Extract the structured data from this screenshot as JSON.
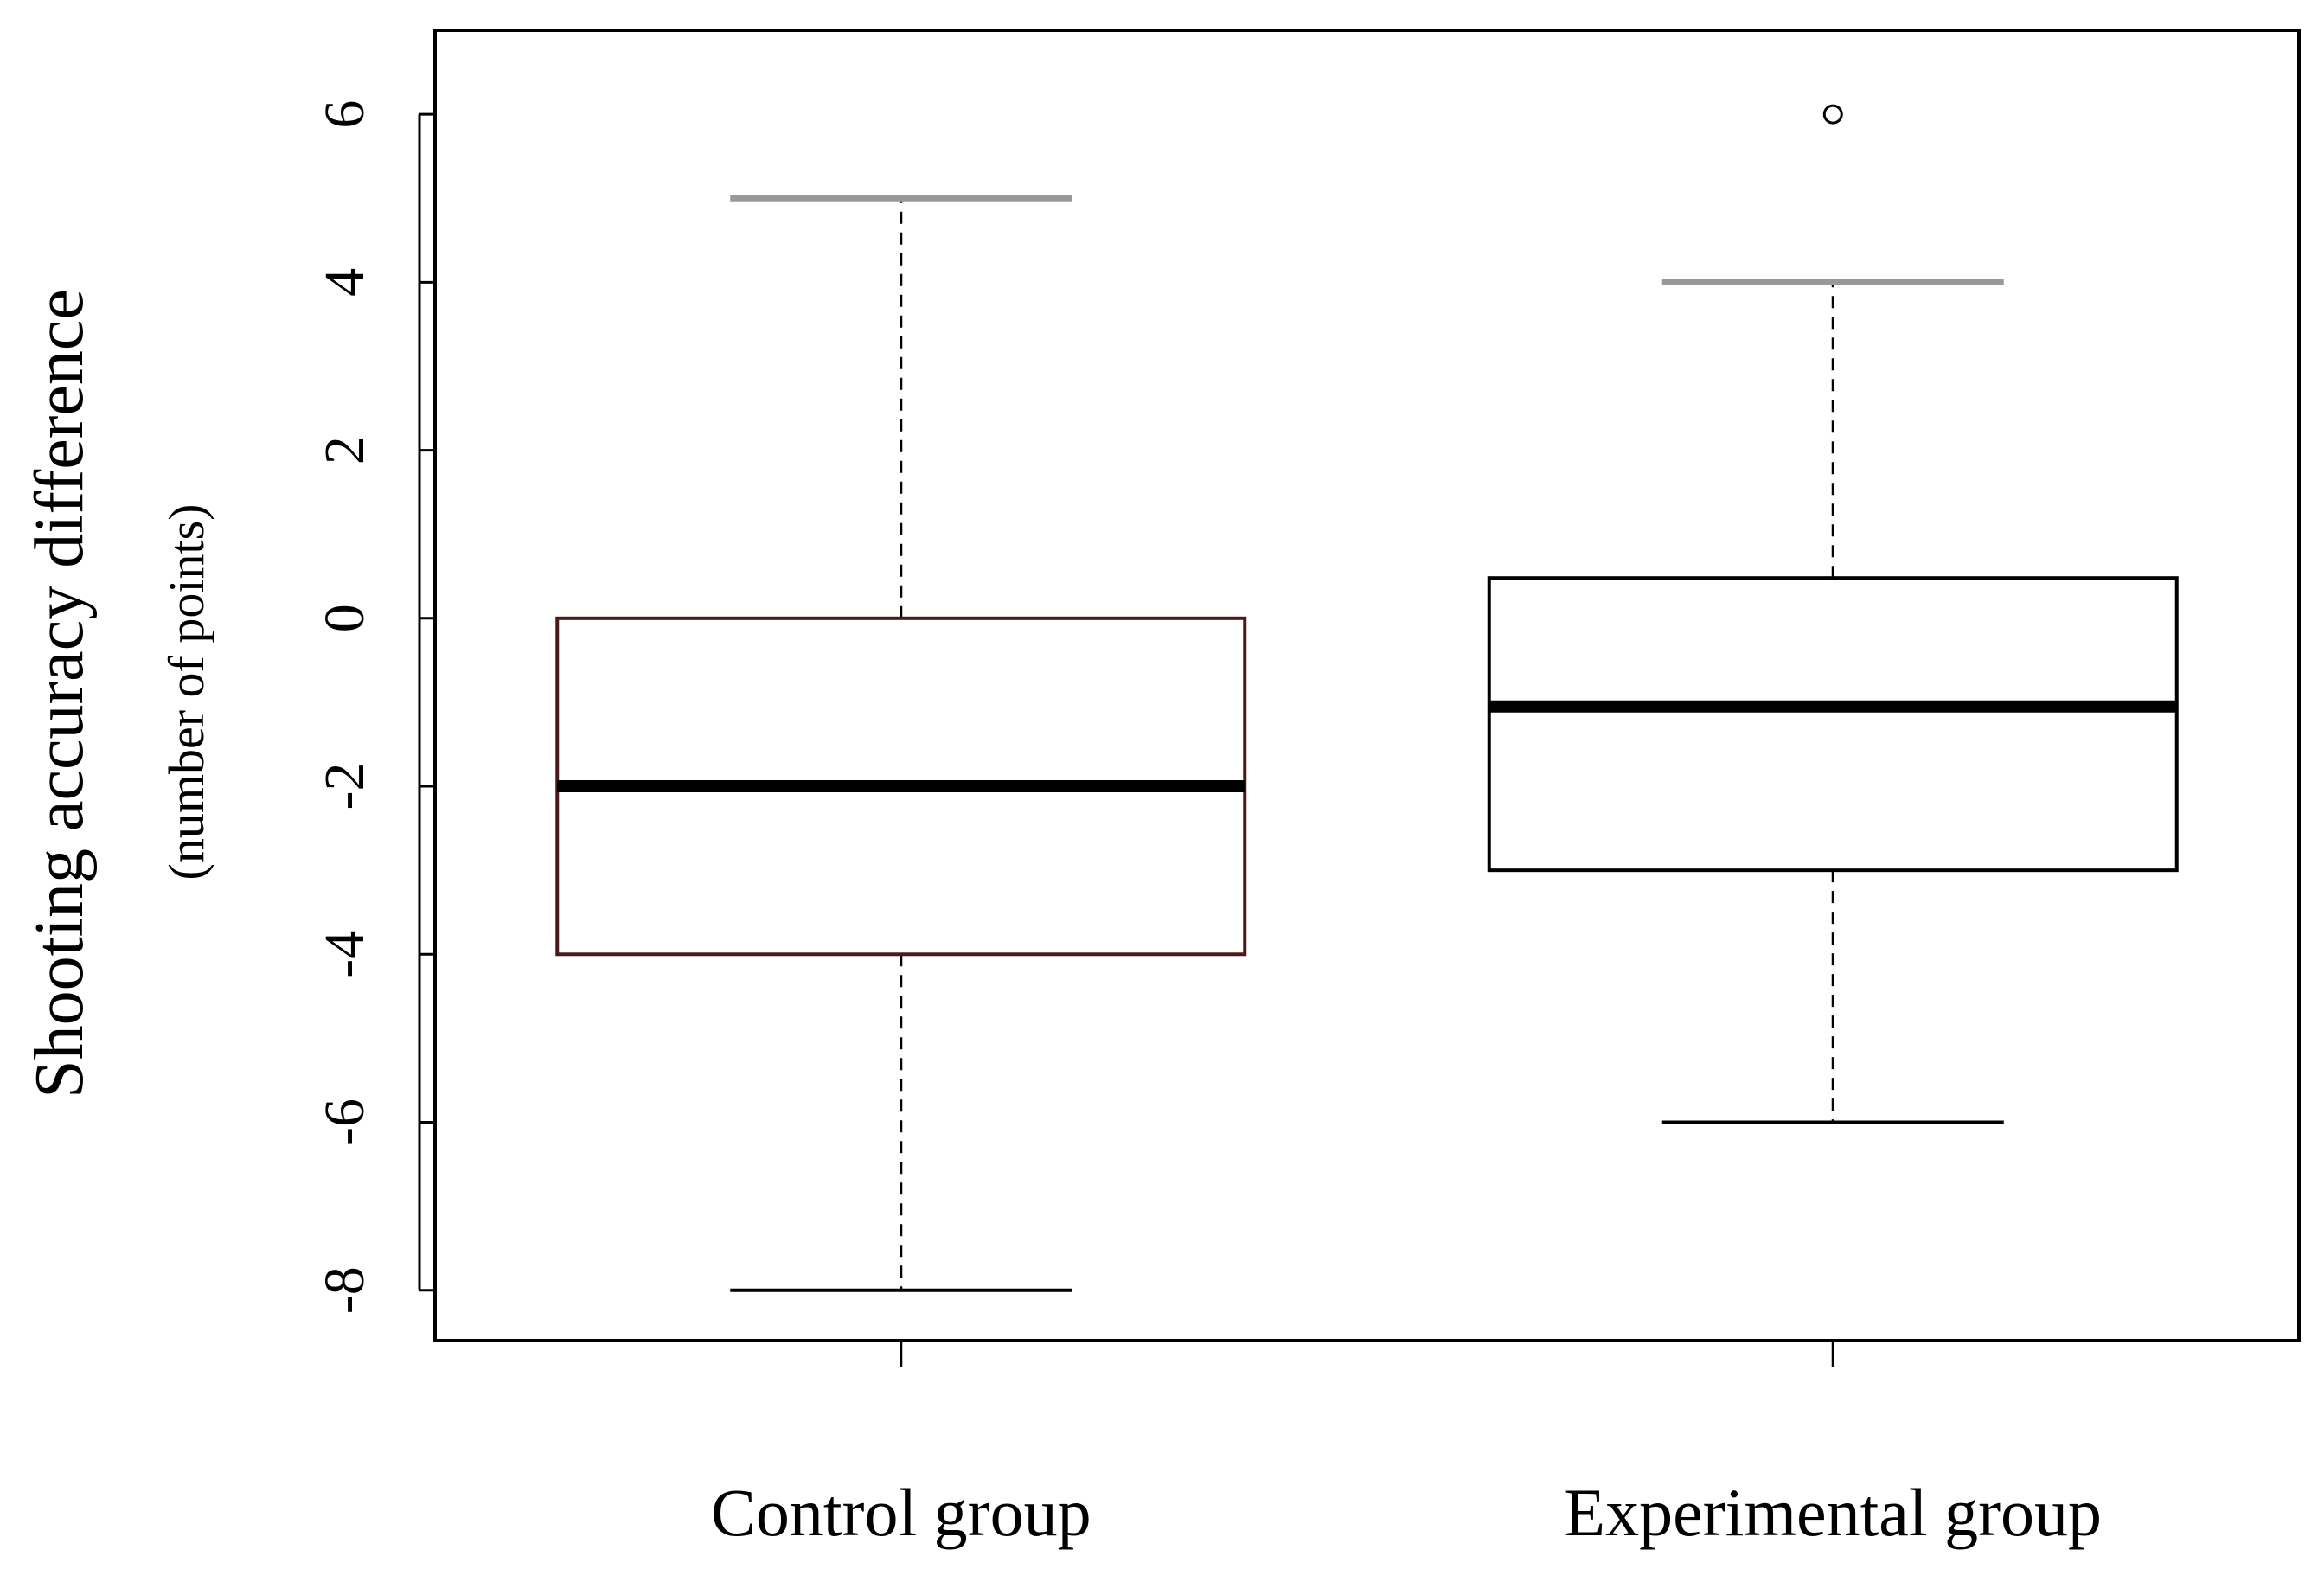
{
  "chart_data": {
    "type": "boxplot",
    "ylabel": "Shooting accuracy difference",
    "ylabel_sub": "(number of points)",
    "xlabel": "",
    "ylim": [
      -8.6,
      7.0
    ],
    "yticks": [
      6,
      4,
      2,
      0,
      -2,
      -4,
      -6,
      -8
    ],
    "ytick_labels": [
      "6",
      "4",
      "2",
      "0",
      "-2",
      "-4",
      "-6",
      "-8"
    ],
    "grid": false,
    "categories": [
      "Control group",
      "Experimental group"
    ],
    "boxes": [
      {
        "min": -8,
        "q1": -4,
        "median": -2,
        "q3": 0,
        "max": 5,
        "outliers": []
      },
      {
        "min": -6,
        "q1": -3,
        "median": -1.05,
        "q3": 0.48,
        "max": 4,
        "outliers": [
          6
        ]
      }
    ],
    "colors": {
      "box_border": [
        "#4a1a1a",
        "#000000"
      ],
      "upper_whisker_cap": "#999999",
      "lower_whisker_cap": "#000000",
      "median": "#000000"
    }
  }
}
